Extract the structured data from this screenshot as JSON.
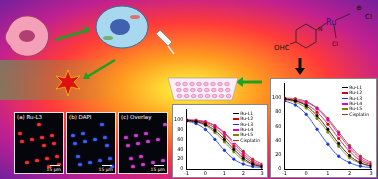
{
  "microscopy": {
    "panels": [
      {
        "tag": "(a)",
        "label": "Ru-L3",
        "scale": "15 µm"
      },
      {
        "tag": "(b)",
        "label": "DAPI",
        "scale": "15 µm"
      },
      {
        "tag": "(c)",
        "label": "Overlay",
        "scale": "15 µm"
      }
    ]
  },
  "structure": {
    "metal": "Ru",
    "aldehyde": "OHC",
    "nitrogen": "N",
    "ligand": "Cl",
    "charge": "⊕",
    "counterion": "Cl"
  },
  "chart_data": [
    {
      "type": "line",
      "legend": "upper right",
      "grid": false,
      "marker": "circle",
      "x": [
        -1,
        -0.5,
        0,
        0.5,
        1,
        1.5,
        2,
        2.5,
        3
      ],
      "xlim": [
        -1,
        3
      ],
      "xticks": [
        -1,
        0,
        1,
        2,
        3
      ],
      "ylim": [
        0,
        120
      ],
      "yticks": [
        0,
        20,
        40,
        60,
        80,
        100
      ],
      "series": [
        {
          "name": "Ru-L1",
          "color": "#000000",
          "values": [
            98,
            96,
            90,
            78,
            60,
            40,
            22,
            10,
            5
          ]
        },
        {
          "name": "Ru-L2",
          "color": "#e00000",
          "values": [
            99,
            97,
            93,
            83,
            66,
            46,
            27,
            13,
            6
          ]
        },
        {
          "name": "Ru-L3",
          "color": "#1030e0",
          "values": [
            97,
            92,
            80,
            60,
            38,
            20,
            10,
            5,
            3
          ]
        },
        {
          "name": "Ru-L4",
          "color": "#e000c0",
          "values": [
            99,
            98,
            95,
            87,
            72,
            52,
            32,
            16,
            8
          ]
        },
        {
          "name": "Ru-L5",
          "color": "#808000",
          "values": [
            98,
            95,
            88,
            74,
            55,
            35,
            18,
            9,
            4
          ]
        },
        {
          "name": "Cisplatin",
          "color": "#8b4513",
          "values": [
            100,
            99,
            96,
            88,
            74,
            55,
            36,
            20,
            10
          ]
        }
      ]
    },
    {
      "type": "line",
      "legend": "upper right",
      "grid": false,
      "marker": "circle",
      "x": [
        -1,
        -0.5,
        0,
        0.5,
        1,
        1.5,
        2,
        2.5,
        3
      ],
      "xlim": [
        -1,
        3
      ],
      "xticks": [
        -1,
        0,
        1,
        2,
        3
      ],
      "ylim": [
        0,
        120
      ],
      "yticks": [
        0,
        20,
        40,
        60,
        80,
        100
      ],
      "series": [
        {
          "name": "Ru-L1",
          "color": "#000000",
          "values": [
            99,
            96,
            89,
            75,
            56,
            36,
            19,
            9,
            4
          ]
        },
        {
          "name": "Ru-L2",
          "color": "#e00000",
          "values": [
            98,
            96,
            91,
            80,
            63,
            43,
            25,
            12,
            6
          ]
        },
        {
          "name": "Ru-L3",
          "color": "#1030e0",
          "values": [
            96,
            90,
            77,
            56,
            35,
            18,
            9,
            4,
            2
          ]
        },
        {
          "name": "Ru-L4",
          "color": "#e000c0",
          "values": [
            99,
            97,
            94,
            85,
            69,
            49,
            30,
            15,
            7
          ]
        },
        {
          "name": "Ru-L5",
          "color": "#808000",
          "values": [
            98,
            94,
            86,
            71,
            52,
            32,
            16,
            8,
            4
          ]
        },
        {
          "name": "Cisplatin",
          "color": "#8b4513",
          "values": [
            100,
            99,
            95,
            86,
            71,
            52,
            33,
            18,
            9
          ]
        }
      ]
    }
  ]
}
